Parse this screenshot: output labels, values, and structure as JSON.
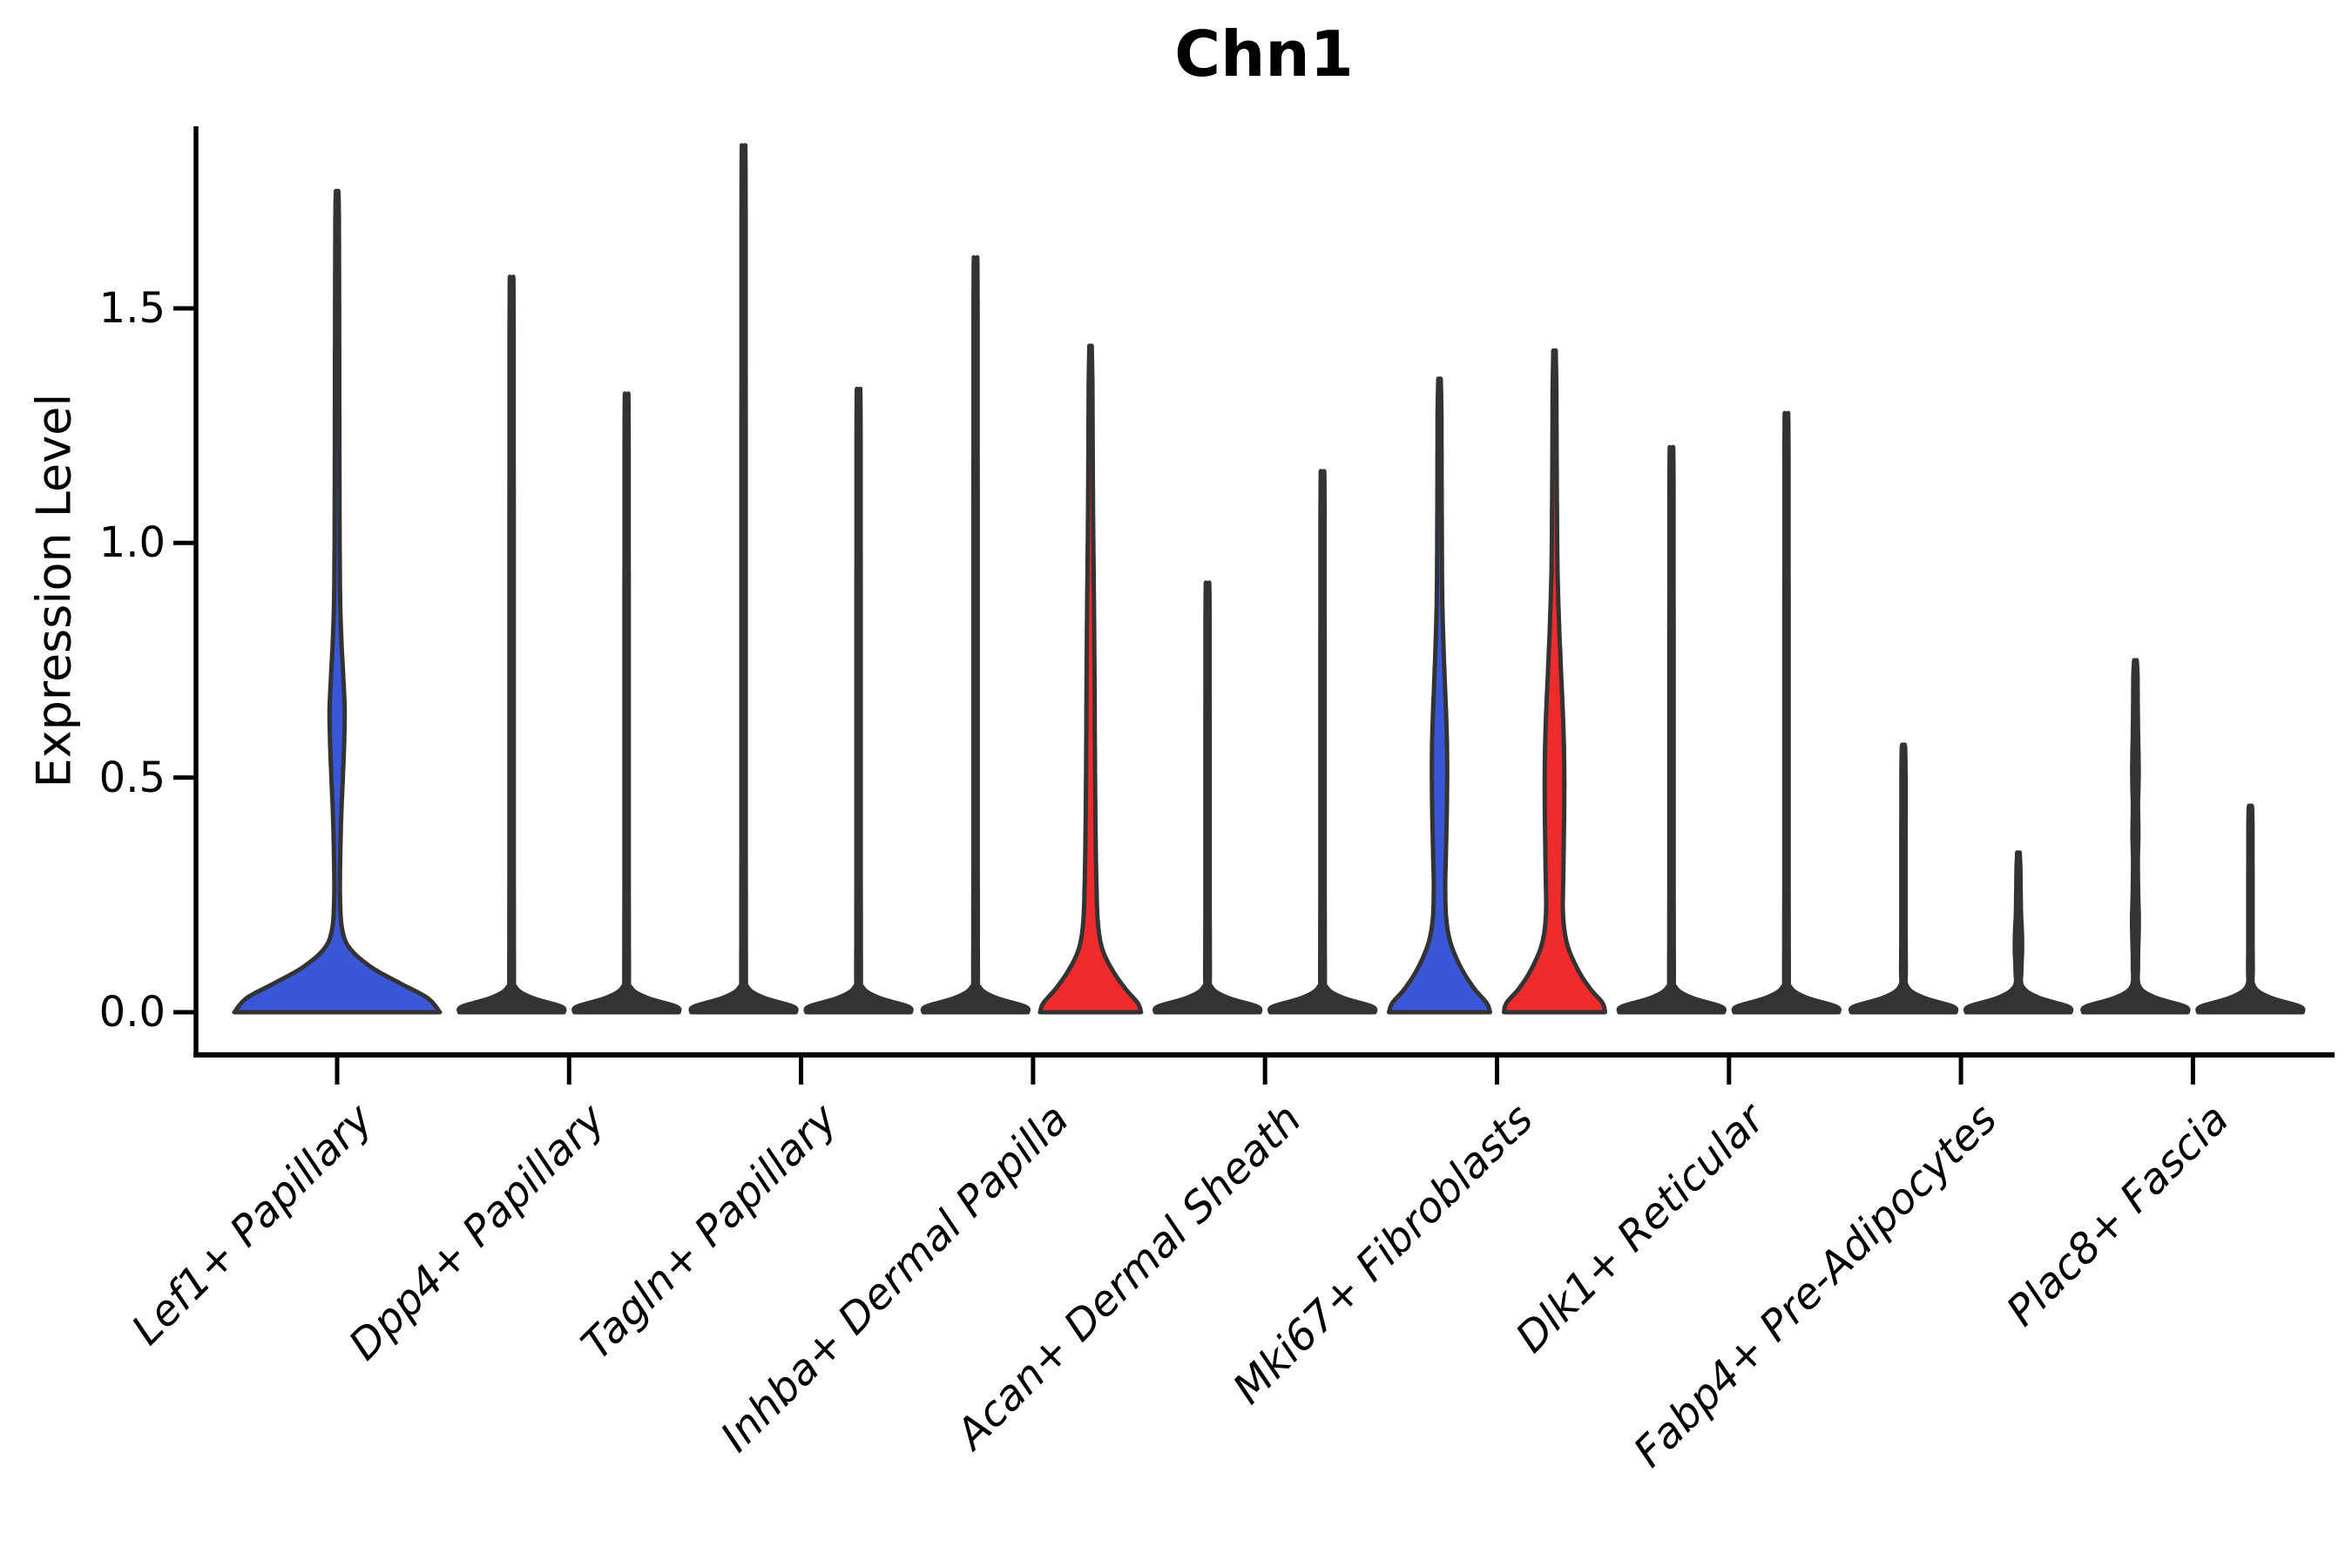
{
  "title": "Chn1",
  "axes": {
    "ylabel": "Expression Level",
    "ytick_labels": [
      "0.0",
      "0.5",
      "1.0",
      "1.5"
    ],
    "ytick_values": [
      0.0,
      0.5,
      1.0,
      1.5
    ]
  },
  "colors": {
    "blue": "#3A57D8",
    "red": "#F02B2B",
    "edge": "#333333",
    "axis": "#000000",
    "background": "#FFFFFF"
  },
  "chart_data": {
    "type": "violin",
    "title": "Chn1",
    "ylabel": "Expression Level",
    "ylim": [
      0,
      1.88
    ],
    "yticks": [
      0.0,
      0.5,
      1.0,
      1.5
    ],
    "grid": false,
    "legend": "none",
    "categories": [
      "Lef1+ Papillary",
      "Dpp4+ Papillary",
      "Tagln+ Papillary",
      "Inhba+ Dermal Papilla",
      "Acan+ Dermal Sheath",
      "Mki67+ Fibroblasts",
      "Dlk1+ Reticular",
      "Fabp4+ Pre-Adipocytes",
      "Plac8+ Fascia"
    ],
    "violins": [
      {
        "category": "Lef1+ Papillary",
        "cat_index": 0,
        "side": "center",
        "fill": "#3A57D8",
        "max_expr": 1.75,
        "double_width": true,
        "profile": [
          [
            0,
            118
          ],
          [
            0.03,
            104
          ],
          [
            0.06,
            74
          ],
          [
            0.095,
            40
          ],
          [
            0.135,
            15
          ],
          [
            0.175,
            6
          ],
          [
            0.24,
            3.4
          ],
          [
            0.33,
            3.6
          ],
          [
            0.42,
            4.8
          ],
          [
            0.5,
            6.6
          ],
          [
            0.58,
            8.2
          ],
          [
            0.645,
            8.7
          ],
          [
            0.71,
            7.2
          ],
          [
            0.79,
            5.0
          ],
          [
            0.87,
            3.6
          ],
          [
            0.98,
            3.0
          ],
          [
            1.15,
            2.7
          ],
          [
            1.35,
            2.5
          ],
          [
            1.55,
            2.3
          ],
          [
            1.7,
            2.0
          ],
          [
            1.75,
            1.4
          ]
        ]
      },
      {
        "category": "Dpp4+ Papillary",
        "cat_index": 1,
        "side": "left",
        "fill": "#333333",
        "max_expr": 1.54,
        "profile": [
          [
            0,
            60
          ],
          [
            0.012,
            57
          ],
          [
            0.032,
            22
          ],
          [
            0.055,
            4.2
          ],
          [
            0.1,
            2.7
          ],
          [
            0.77,
            2.5
          ],
          [
            1.5,
            2.3
          ],
          [
            1.54,
            1.5
          ]
        ]
      },
      {
        "category": "Dpp4+ Papillary",
        "cat_index": 1,
        "side": "right",
        "fill": "#333333",
        "max_expr": 1.3,
        "profile": [
          [
            0,
            60
          ],
          [
            0.012,
            57
          ],
          [
            0.032,
            22
          ],
          [
            0.055,
            4.2
          ],
          [
            0.1,
            2.7
          ],
          [
            0.65,
            2.5
          ],
          [
            1.26,
            2.3
          ],
          [
            1.3,
            1.5
          ]
        ]
      },
      {
        "category": "Tagln+ Papillary",
        "cat_index": 2,
        "side": "left",
        "fill": "#333333",
        "max_expr": 1.81,
        "profile": [
          [
            0,
            60
          ],
          [
            0.012,
            57
          ],
          [
            0.032,
            22
          ],
          [
            0.055,
            4.2
          ],
          [
            0.1,
            2.7
          ],
          [
            0.9,
            2.5
          ],
          [
            1.77,
            2.3
          ],
          [
            1.81,
            1.5
          ]
        ]
      },
      {
        "category": "Tagln+ Papillary",
        "cat_index": 2,
        "side": "right",
        "fill": "#333333",
        "max_expr": 1.31,
        "profile": [
          [
            0,
            60
          ],
          [
            0.012,
            57
          ],
          [
            0.032,
            22
          ],
          [
            0.055,
            4.2
          ],
          [
            0.1,
            2.7
          ],
          [
            0.66,
            2.5
          ],
          [
            1.27,
            2.3
          ],
          [
            1.31,
            1.5
          ]
        ]
      },
      {
        "category": "Inhba+ Dermal Papilla",
        "cat_index": 3,
        "side": "left",
        "fill": "#333333",
        "max_expr": 1.58,
        "profile": [
          [
            0,
            60
          ],
          [
            0.012,
            57
          ],
          [
            0.032,
            22
          ],
          [
            0.055,
            4.2
          ],
          [
            0.1,
            2.7
          ],
          [
            0.79,
            2.5
          ],
          [
            1.54,
            2.3
          ],
          [
            1.58,
            1.5
          ]
        ]
      },
      {
        "category": "Inhba+ Dermal Papilla",
        "cat_index": 3,
        "side": "right",
        "fill": "#F02B2B",
        "max_expr": 1.42,
        "profile": [
          [
            0,
            58
          ],
          [
            0.02,
            54
          ],
          [
            0.05,
            40
          ],
          [
            0.09,
            25
          ],
          [
            0.135,
            13.5
          ],
          [
            0.19,
            8.5
          ],
          [
            0.27,
            6.8
          ],
          [
            0.38,
            5.8
          ],
          [
            0.5,
            5.2
          ],
          [
            0.63,
            4.8
          ],
          [
            0.76,
            4.4
          ],
          [
            0.88,
            3.9
          ],
          [
            1.0,
            3.2
          ],
          [
            1.12,
            2.7
          ],
          [
            1.25,
            2.4
          ],
          [
            1.35,
            2.1
          ],
          [
            1.42,
            1.4
          ]
        ]
      },
      {
        "category": "Acan+ Dermal Sheath",
        "cat_index": 4,
        "side": "left",
        "fill": "#333333",
        "max_expr": 0.91,
        "profile": [
          [
            0,
            60
          ],
          [
            0.012,
            57
          ],
          [
            0.032,
            22
          ],
          [
            0.055,
            4.2
          ],
          [
            0.1,
            2.7
          ],
          [
            0.46,
            2.5
          ],
          [
            0.87,
            2.3
          ],
          [
            0.91,
            1.5
          ]
        ]
      },
      {
        "category": "Acan+ Dermal Sheath",
        "cat_index": 4,
        "side": "right",
        "fill": "#333333",
        "max_expr": 1.14,
        "profile": [
          [
            0,
            60
          ],
          [
            0.012,
            57
          ],
          [
            0.032,
            22
          ],
          [
            0.055,
            4.2
          ],
          [
            0.1,
            2.7
          ],
          [
            0.57,
            2.5
          ],
          [
            1.1,
            2.3
          ],
          [
            1.14,
            1.5
          ]
        ]
      },
      {
        "category": "Mki67+ Fibroblasts",
        "cat_index": 5,
        "side": "left",
        "fill": "#3A57D8",
        "max_expr": 1.35,
        "profile": [
          [
            0,
            58
          ],
          [
            0.02,
            54
          ],
          [
            0.05,
            40
          ],
          [
            0.09,
            26
          ],
          [
            0.14,
            14
          ],
          [
            0.19,
            8.2
          ],
          [
            0.26,
            6.6
          ],
          [
            0.34,
            7.4
          ],
          [
            0.43,
            8.4
          ],
          [
            0.52,
            8.8
          ],
          [
            0.6,
            8.2
          ],
          [
            0.69,
            6.4
          ],
          [
            0.78,
            4.6
          ],
          [
            0.88,
            3.2
          ],
          [
            1.0,
            2.7
          ],
          [
            1.15,
            2.4
          ],
          [
            1.28,
            2.2
          ],
          [
            1.35,
            1.4
          ]
        ]
      },
      {
        "category": "Mki67+ Fibroblasts",
        "cat_index": 5,
        "side": "right",
        "fill": "#F02B2B",
        "max_expr": 1.41,
        "profile": [
          [
            0,
            58
          ],
          [
            0.02,
            55
          ],
          [
            0.05,
            41
          ],
          [
            0.09,
            27
          ],
          [
            0.145,
            14.5
          ],
          [
            0.21,
            9.8
          ],
          [
            0.3,
            10.2
          ],
          [
            0.41,
            11.0
          ],
          [
            0.52,
            11.2
          ],
          [
            0.62,
            10.0
          ],
          [
            0.73,
            7.4
          ],
          [
            0.84,
            5.0
          ],
          [
            0.95,
            3.4
          ],
          [
            1.08,
            2.8
          ],
          [
            1.22,
            2.4
          ],
          [
            1.34,
            2.1
          ],
          [
            1.41,
            1.4
          ]
        ]
      },
      {
        "category": "Dlk1+ Reticular",
        "cat_index": 6,
        "side": "left",
        "fill": "#333333",
        "max_expr": 1.19,
        "profile": [
          [
            0,
            60
          ],
          [
            0.012,
            57
          ],
          [
            0.032,
            22
          ],
          [
            0.055,
            4.2
          ],
          [
            0.1,
            2.7
          ],
          [
            0.6,
            2.5
          ],
          [
            1.15,
            2.3
          ],
          [
            1.19,
            1.5
          ]
        ]
      },
      {
        "category": "Dlk1+ Reticular",
        "cat_index": 6,
        "side": "right",
        "fill": "#333333",
        "max_expr": 1.26,
        "profile": [
          [
            0,
            60
          ],
          [
            0.012,
            57
          ],
          [
            0.032,
            22
          ],
          [
            0.055,
            4.2
          ],
          [
            0.1,
            2.7
          ],
          [
            0.63,
            2.5
          ],
          [
            1.22,
            2.3
          ],
          [
            1.26,
            1.5
          ]
        ]
      },
      {
        "category": "Fabp4+ Pre-Adipocytes",
        "cat_index": 7,
        "side": "left",
        "fill": "#333333",
        "max_expr": 0.57,
        "profile": [
          [
            0,
            60
          ],
          [
            0.012,
            57
          ],
          [
            0.032,
            22
          ],
          [
            0.055,
            4.2
          ],
          [
            0.1,
            2.7
          ],
          [
            0.29,
            2.5
          ],
          [
            0.53,
            2.3
          ],
          [
            0.57,
            1.5
          ]
        ]
      },
      {
        "category": "Fabp4+ Pre-Adipocytes",
        "cat_index": 7,
        "side": "right",
        "fill": "#333333",
        "max_expr": 0.34,
        "profile": [
          [
            0,
            60
          ],
          [
            0.012,
            57
          ],
          [
            0.032,
            22
          ],
          [
            0.055,
            4.5
          ],
          [
            0.09,
            3.4
          ],
          [
            0.13,
            4.2
          ],
          [
            0.17,
            4.0
          ],
          [
            0.21,
            3.0
          ],
          [
            0.27,
            2.5
          ],
          [
            0.31,
            2.2
          ],
          [
            0.34,
            1.5
          ]
        ]
      },
      {
        "category": "Plac8+ Fascia",
        "cat_index": 8,
        "side": "left",
        "fill": "#333333",
        "max_expr": 0.75,
        "profile": [
          [
            0,
            60
          ],
          [
            0.012,
            57
          ],
          [
            0.032,
            22
          ],
          [
            0.055,
            4.5
          ],
          [
            0.1,
            3.0
          ],
          [
            0.16,
            3.6
          ],
          [
            0.2,
            3.9
          ],
          [
            0.25,
            3.2
          ],
          [
            0.32,
            2.8
          ],
          [
            0.38,
            3.4
          ],
          [
            0.44,
            3.0
          ],
          [
            0.49,
            3.6
          ],
          [
            0.54,
            3.6
          ],
          [
            0.6,
            3.0
          ],
          [
            0.67,
            2.6
          ],
          [
            0.72,
            2.4
          ],
          [
            0.75,
            1.5
          ]
        ]
      },
      {
        "category": "Plac8+ Fascia",
        "cat_index": 8,
        "side": "right",
        "fill": "#333333",
        "max_expr": 0.44,
        "profile": [
          [
            0,
            60
          ],
          [
            0.012,
            57
          ],
          [
            0.032,
            22
          ],
          [
            0.055,
            4.2
          ],
          [
            0.1,
            2.7
          ],
          [
            0.22,
            2.5
          ],
          [
            0.41,
            2.3
          ],
          [
            0.44,
            1.5
          ]
        ]
      }
    ]
  }
}
